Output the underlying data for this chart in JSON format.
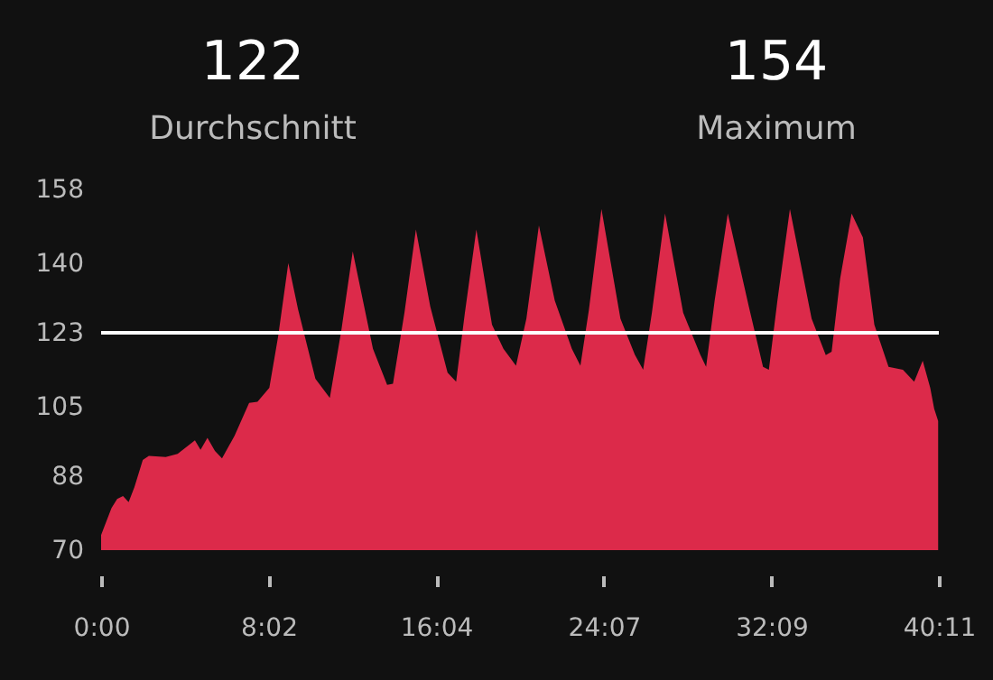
{
  "chart_data": {
    "type": "area",
    "annotations": [
      "122",
      "Durchschnitt",
      "154",
      "Maximum"
    ],
    "x": [
      0,
      0.22,
      0.5,
      0.77,
      1.05,
      1.32,
      1.6,
      2.0,
      2.29,
      3.1,
      3.67,
      4.5,
      4.77,
      5.1,
      5.46,
      5.8,
      6.4,
      7.1,
      7.5,
      8.07,
      8.49,
      8.98,
      9.45,
      10.28,
      10.97,
      11.52,
      12.07,
      13.04,
      13.72,
      14.0,
      14.55,
      15.1,
      15.79,
      16.62,
      17.03,
      17.45,
      18.0,
      18.75,
      19.3,
      19.9,
      20.4,
      21.0,
      21.76,
      22.58,
      22.99,
      23.4,
      24.0,
      24.91,
      25.6,
      26.0,
      26.42,
      27.05,
      27.92,
      28.74,
      29.02,
      29.43,
      30.06,
      31.07,
      31.75,
      32.03,
      32.44,
      33.04,
      34.08,
      34.76,
      35.04,
      35.45,
      36.0,
      36.54,
      37.09,
      37.77,
      38.46,
      39.0,
      39.41,
      39.77,
      39.96,
      40.15
    ],
    "series": [
      {
        "color": "#dc2a4a",
        "values": [
          73.7,
          76.6,
          80.3,
          82.5,
          83.2,
          81.7,
          85.4,
          92,
          93,
          92.7,
          93.5,
          96.8,
          94.5,
          97.4,
          94.2,
          92.4,
          97.9,
          105.9,
          106.2,
          109.6,
          122.1,
          140,
          128.7,
          111.8,
          107.1,
          123.5,
          142.9,
          119.1,
          110.3,
          110.6,
          127.9,
          148.2,
          129.4,
          113.3,
          111.1,
          127.9,
          148.2,
          125,
          119.1,
          115,
          126.5,
          149.2,
          130.9,
          119.1,
          115,
          128.7,
          153.2,
          126.5,
          117.7,
          114,
          127.9,
          152.1,
          127.9,
          117.7,
          114.7,
          130.9,
          152.1,
          129.4,
          114.7,
          114,
          130.9,
          153.2,
          126.5,
          117.6,
          118.4,
          136.3,
          152.1,
          146.3,
          125,
          114.7,
          114,
          111.1,
          116.2,
          109.6,
          104.5,
          101.5
        ]
      }
    ],
    "xlim": [
      0,
      40.183
    ],
    "xticks": [
      {
        "value": 0,
        "label": "0:00"
      },
      {
        "value": 8.033,
        "label": "8:02"
      },
      {
        "value": 16.067,
        "label": "16:04"
      },
      {
        "value": 24.117,
        "label": "24:07"
      },
      {
        "value": 32.15,
        "label": "32:09"
      },
      {
        "value": 40.183,
        "label": "40:11"
      }
    ],
    "ylim": [
      70,
      158
    ],
    "yticks": [
      70,
      88,
      105,
      123,
      140,
      158
    ],
    "ref_lines": [
      {
        "axis": "y",
        "value": 123,
        "color": "#ffffff"
      }
    ],
    "grid": false
  }
}
